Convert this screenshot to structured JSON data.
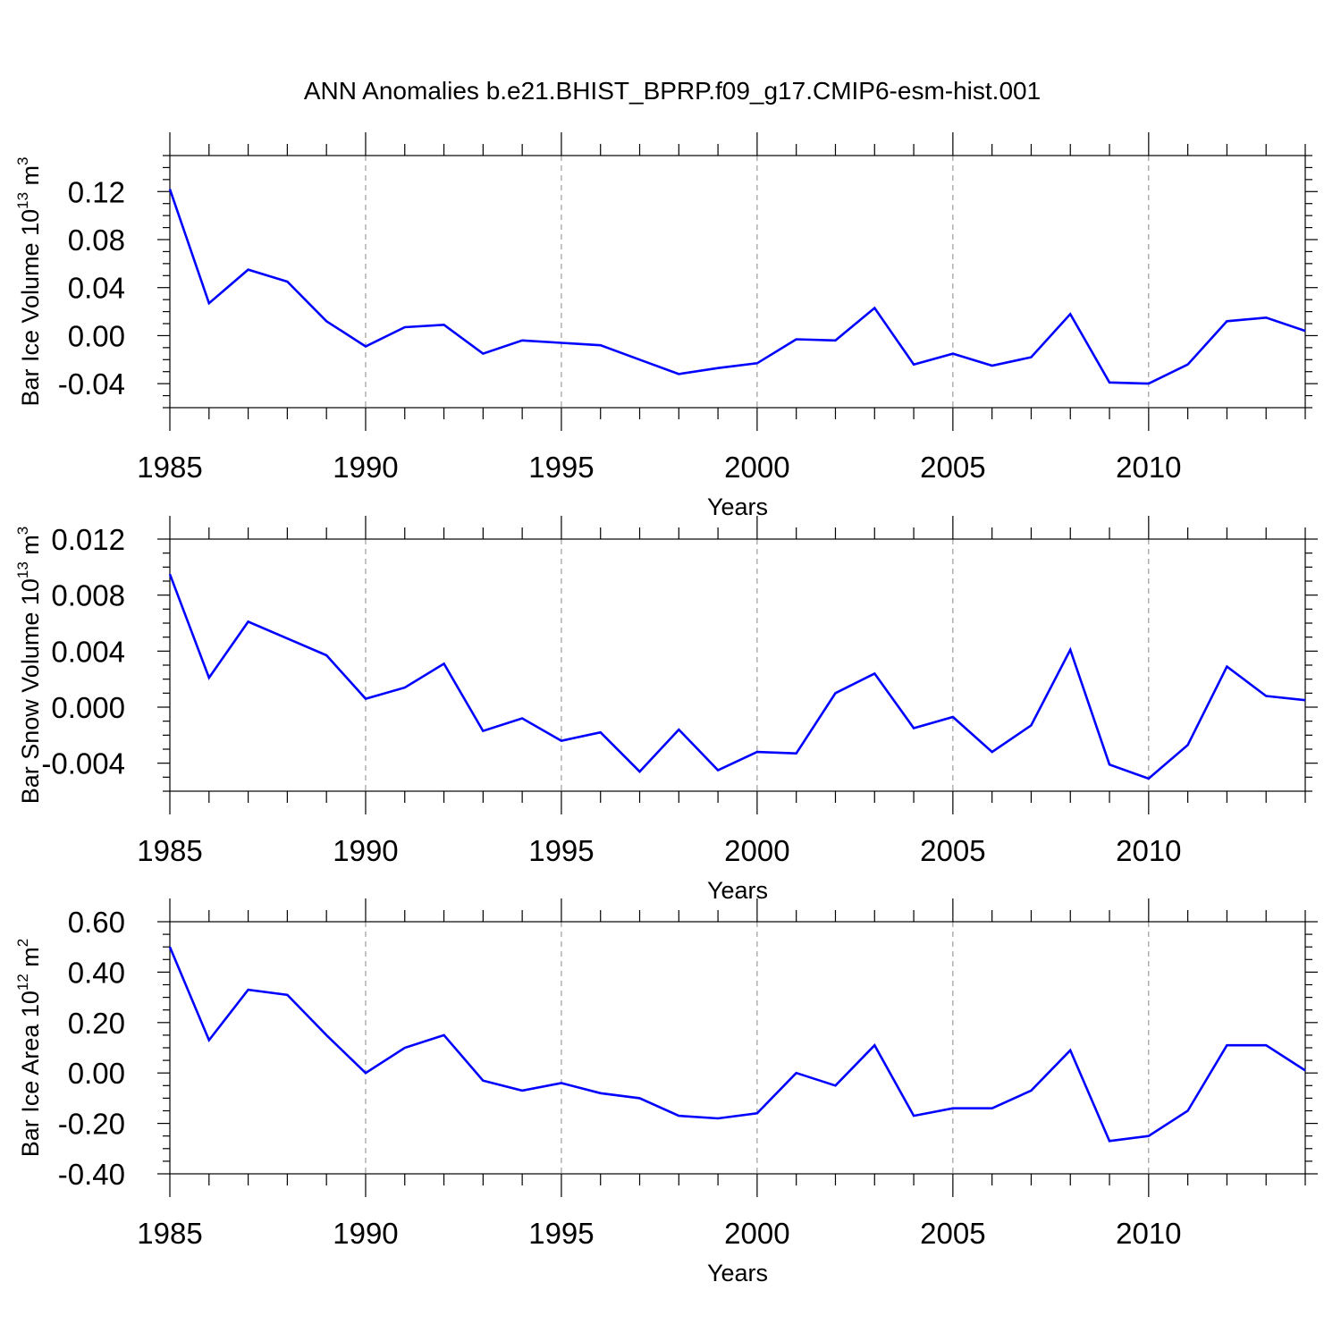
{
  "figure_title": "ANN Anomalies b.e21.BHIST_BPRP.f09_g17.CMIP6-esm-hist.001",
  "line_color": "#0000ff",
  "chart_data": [
    {
      "type": "line",
      "ylabel_main": "Bar Ice Volume 10",
      "ylabel_exp": "13",
      "ylabel_unit": " m",
      "ylabel_unit_exp": "3",
      "xlabel": "Years",
      "xlim": [
        1985,
        2014
      ],
      "ylim": [
        -0.06,
        0.15
      ],
      "yticks": [
        -0.04,
        0.0,
        0.04,
        0.08,
        0.12
      ],
      "ytick_labels": [
        "-0.04",
        "0.00",
        "0.04",
        "0.08",
        "0.12"
      ],
      "yminor_step": 0.01,
      "xticks": [
        1985,
        1990,
        1995,
        2000,
        2005,
        2010
      ],
      "xtick_labels": [
        "1985",
        "1990",
        "1995",
        "2000",
        "2005",
        "2010"
      ],
      "grid_x": [
        1990,
        1995,
        2000,
        2005,
        2010
      ],
      "x": [
        1985,
        1986,
        1987,
        1988,
        1989,
        1990,
        1991,
        1992,
        1993,
        1994,
        1995,
        1996,
        1997,
        1998,
        1999,
        2000,
        2001,
        2002,
        2003,
        2004,
        2005,
        2006,
        2007,
        2008,
        2009,
        2010,
        2011,
        2012,
        2013,
        2014
      ],
      "y": [
        0.122,
        0.027,
        0.055,
        0.045,
        0.012,
        -0.009,
        0.007,
        0.009,
        -0.015,
        -0.004,
        -0.006,
        -0.008,
        -0.02,
        -0.032,
        -0.027,
        -0.023,
        -0.003,
        -0.004,
        0.023,
        -0.024,
        -0.015,
        -0.025,
        -0.018,
        0.018,
        -0.039,
        -0.04,
        -0.024,
        0.012,
        0.015,
        0.004
      ]
    },
    {
      "type": "line",
      "ylabel_main": "Bar Snow Volume 10",
      "ylabel_exp": "13",
      "ylabel_unit": " m",
      "ylabel_unit_exp": "3",
      "xlabel": "Years",
      "xlim": [
        1985,
        2014
      ],
      "ylim": [
        -0.006,
        0.012
      ],
      "yticks": [
        -0.004,
        0.0,
        0.004,
        0.008,
        0.012
      ],
      "ytick_labels": [
        "-0.004",
        "0.000",
        "0.004",
        "0.008",
        "0.012"
      ],
      "yminor_step": 0.001,
      "xticks": [
        1985,
        1990,
        1995,
        2000,
        2005,
        2010
      ],
      "xtick_labels": [
        "1985",
        "1990",
        "1995",
        "2000",
        "2005",
        "2010"
      ],
      "grid_x": [
        1990,
        1995,
        2000,
        2005,
        2010
      ],
      "x": [
        1985,
        1986,
        1987,
        1988,
        1989,
        1990,
        1991,
        1992,
        1993,
        1994,
        1995,
        1996,
        1997,
        1998,
        1999,
        2000,
        2001,
        2002,
        2003,
        2004,
        2005,
        2006,
        2007,
        2008,
        2009,
        2010,
        2011,
        2012,
        2013,
        2014
      ],
      "y": [
        0.0095,
        0.0021,
        0.0061,
        0.0049,
        0.0037,
        0.0006,
        0.0014,
        0.0031,
        -0.0017,
        -0.0008,
        -0.0024,
        -0.0018,
        -0.0046,
        -0.0016,
        -0.0045,
        -0.0032,
        -0.0033,
        0.001,
        0.0024,
        -0.0015,
        -0.0007,
        -0.0032,
        -0.0013,
        0.0041,
        -0.0041,
        -0.0051,
        -0.0027,
        0.0029,
        0.0008,
        0.0005
      ]
    },
    {
      "type": "line",
      "ylabel_main": "Bar Ice Area 10",
      "ylabel_exp": "12",
      "ylabel_unit": " m",
      "ylabel_unit_exp": "2",
      "xlabel": "Years",
      "xlim": [
        1985,
        2014
      ],
      "ylim": [
        -0.4,
        0.6
      ],
      "yticks": [
        -0.4,
        -0.2,
        0.0,
        0.2,
        0.4,
        0.6
      ],
      "ytick_labels": [
        "-0.40",
        "-0.20",
        "0.00",
        "0.20",
        "0.40",
        "0.60"
      ],
      "yminor_step": 0.05,
      "xticks": [
        1985,
        1990,
        1995,
        2000,
        2005,
        2010
      ],
      "xtick_labels": [
        "1985",
        "1990",
        "1995",
        "2000",
        "2005",
        "2010"
      ],
      "grid_x": [
        1990,
        1995,
        2000,
        2005,
        2010
      ],
      "x": [
        1985,
        1986,
        1987,
        1988,
        1989,
        1990,
        1991,
        1992,
        1993,
        1994,
        1995,
        1996,
        1997,
        1998,
        1999,
        2000,
        2001,
        2002,
        2003,
        2004,
        2005,
        2006,
        2007,
        2008,
        2009,
        2010,
        2011,
        2012,
        2013,
        2014
      ],
      "y": [
        0.5,
        0.13,
        0.33,
        0.31,
        0.15,
        0.0,
        0.1,
        0.15,
        -0.03,
        -0.07,
        -0.04,
        -0.08,
        -0.1,
        -0.17,
        -0.18,
        -0.16,
        0.0,
        -0.05,
        0.11,
        -0.17,
        -0.14,
        -0.14,
        -0.07,
        0.09,
        -0.27,
        -0.25,
        -0.15,
        0.11,
        0.11,
        0.01
      ]
    }
  ]
}
